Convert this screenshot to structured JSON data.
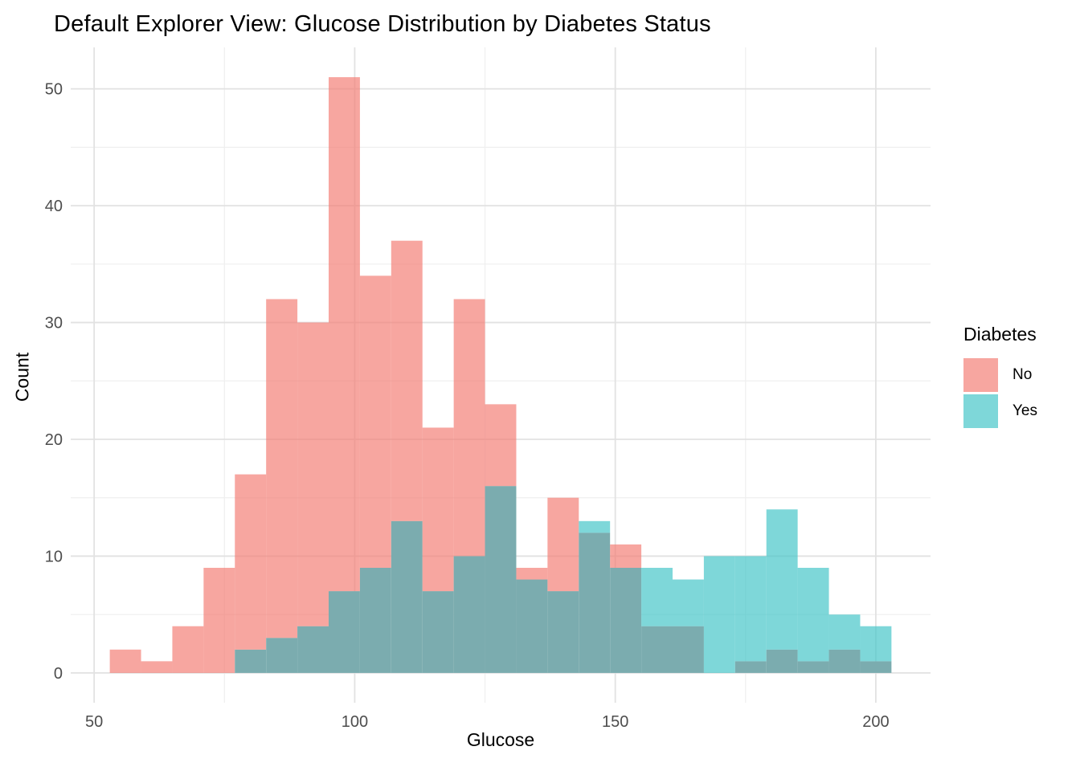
{
  "page": {
    "background": "#FFFFFF"
  },
  "chart_data": {
    "type": "histogram",
    "title": "Default Explorer View: Glucose Distribution by Diabetes Status",
    "xlabel": "Glucose",
    "ylabel": "Count",
    "bin_start": 53,
    "bin_width": 6,
    "bin_edges": [
      53,
      59,
      65,
      71,
      77,
      83,
      89,
      95,
      101,
      107,
      113,
      119,
      125,
      131,
      137,
      143,
      149,
      155,
      161,
      167,
      173,
      179,
      185,
      191,
      197,
      203
    ],
    "series": [
      {
        "name": "No",
        "color_solid": "#F7A6A0",
        "color_rgba": "rgba(243,122,113,0.67)",
        "values": [
          2,
          1,
          4,
          9,
          17,
          32,
          30,
          51,
          34,
          37,
          21,
          32,
          23,
          9,
          15,
          12,
          11,
          4,
          4,
          0,
          1,
          2,
          1,
          2,
          1
        ]
      },
      {
        "name": "Yes",
        "color_solid": "#7ED7D9",
        "color_rgba": "rgba(62,196,199,0.67)",
        "values": [
          0,
          0,
          0,
          0,
          2,
          3,
          4,
          7,
          9,
          13,
          7,
          10,
          16,
          8,
          7,
          13,
          9,
          9,
          8,
          10,
          10,
          14,
          9,
          5,
          4
        ]
      }
    ],
    "overlap_color": "#7BACAF",
    "x_ticks": {
      "values": [
        50,
        100,
        150,
        200
      ],
      "labels": [
        "50",
        "100",
        "150",
        "200"
      ]
    },
    "y_ticks": {
      "values": [
        0,
        10,
        20,
        30,
        40,
        50
      ],
      "labels": [
        "0",
        "10",
        "20",
        "30",
        "40",
        "50"
      ]
    },
    "x_minor": [
      75,
      125,
      175
    ],
    "y_minor": [
      5,
      15,
      25,
      35,
      45
    ],
    "xlim": [
      45.5,
      210.5
    ],
    "ylim": [
      -2.55,
      53.55
    ],
    "grid": true,
    "grid_major_color": "#E2E2E2",
    "grid_minor_color": "#EFEFEF",
    "tick_label_color": "#4D4D4D",
    "legend_position": "right",
    "legend": {
      "title": "Diabetes",
      "entries": [
        {
          "label": "No"
        },
        {
          "label": "Yes"
        }
      ]
    }
  }
}
